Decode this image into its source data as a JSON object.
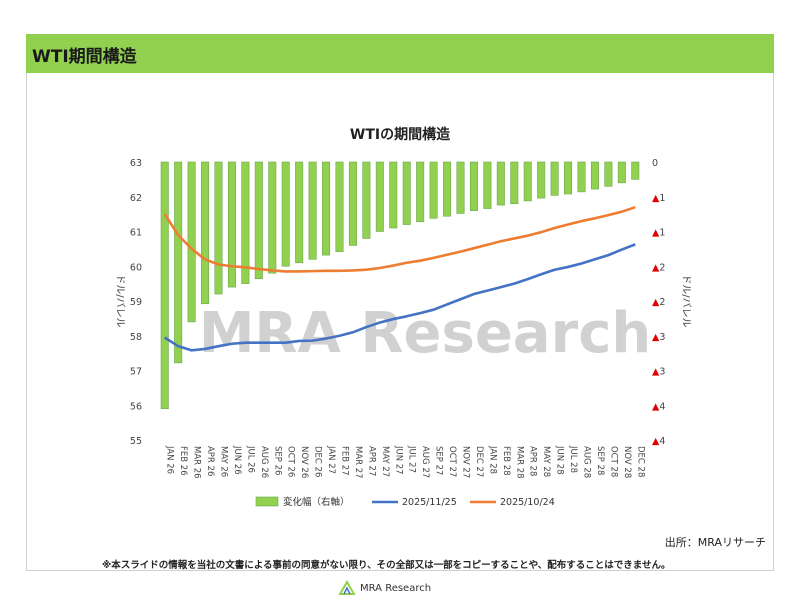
{
  "header": {
    "title": "WTI期間構造"
  },
  "watermark": "MRA Research",
  "source": "出所：MRAリサーチ",
  "footnote": "※本スライドの情報を当社の文書による事前の同意がない限り、その全部又は一部をコピーすることや、配布することはできません。",
  "logo": {
    "text": "MRA Research"
  },
  "colors": {
    "bar": "#92d050",
    "bar_border": "#6aa84f",
    "line_1125": "#4472c4",
    "line_1024": "#ed7d31",
    "neg_marker": "#e00000",
    "header": "#92d050"
  },
  "chart_data": {
    "type": "bar+line",
    "title": "WTIの期間構造",
    "ylabel": "ドル/バレル",
    "y2label": "ドル/バレル",
    "ylim": [
      55,
      63
    ],
    "y2lim": [
      -4,
      0
    ],
    "yticks": [
      "63",
      "62",
      "61",
      "60",
      "59",
      "58",
      "57",
      "56",
      "55"
    ],
    "y2ticks": [
      "0",
      "▲1",
      "▲1",
      "▲2",
      "▲2",
      "▲3",
      "▲3",
      "▲4",
      "▲4"
    ],
    "grid": false,
    "legend_position": "bottom",
    "categories": [
      "JAN 26",
      "FEB 26",
      "MAR 26",
      "APR 26",
      "MAY 26",
      "JUN 26",
      "JUL 26",
      "AUG 26",
      "SEP 26",
      "OCT 26",
      "NOV 26",
      "DEC 26",
      "JAN 27",
      "FEB 27",
      "MAR 27",
      "APR 27",
      "MAY 27",
      "JUN 27",
      "JUL 27",
      "AUG 27",
      "SEP 27",
      "OCT 27",
      "NOV 27",
      "DEC 27",
      "JAN 28",
      "FEB 28",
      "MAR 28",
      "APR 28",
      "MAY 28",
      "JUN 28",
      "JUL 28",
      "AUG 28",
      "SEP 28",
      "OCT 28",
      "NOV 28",
      "DEC 28"
    ],
    "series": [
      {
        "name": "変化幅（右軸）",
        "type": "bar",
        "axis": "right",
        "values": [
          -3.55,
          -2.89,
          -2.3,
          -2.04,
          -1.9,
          -1.8,
          -1.75,
          -1.68,
          -1.6,
          -1.5,
          -1.45,
          -1.4,
          -1.34,
          -1.29,
          -1.2,
          -1.1,
          -1.0,
          -0.95,
          -0.9,
          -0.86,
          -0.81,
          -0.78,
          -0.74,
          -0.7,
          -0.67,
          -0.62,
          -0.6,
          -0.56,
          -0.52,
          -0.48,
          -0.46,
          -0.43,
          -0.39,
          -0.35,
          -0.3,
          -0.25
        ]
      },
      {
        "name": "2025/11/25",
        "type": "line",
        "axis": "left",
        "values": [
          57.95,
          57.7,
          57.58,
          57.62,
          57.7,
          57.77,
          57.8,
          57.8,
          57.8,
          57.8,
          57.85,
          57.86,
          57.92,
          58.0,
          58.1,
          58.25,
          58.38,
          58.48,
          58.56,
          58.65,
          58.75,
          58.9,
          59.05,
          59.2,
          59.3,
          59.4,
          59.5,
          59.63,
          59.77,
          59.9,
          59.98,
          60.08,
          60.2,
          60.32,
          60.48,
          60.63
        ]
      },
      {
        "name": "2025/10/24",
        "type": "line",
        "axis": "left",
        "values": [
          61.5,
          60.9,
          60.5,
          60.2,
          60.05,
          60.0,
          59.97,
          59.92,
          59.88,
          59.85,
          59.85,
          59.86,
          59.87,
          59.87,
          59.88,
          59.9,
          59.95,
          60.02,
          60.1,
          60.16,
          60.24,
          60.33,
          60.42,
          60.52,
          60.62,
          60.72,
          60.8,
          60.88,
          60.98,
          61.1,
          61.2,
          61.3,
          61.38,
          61.47,
          61.57,
          61.7
        ]
      }
    ]
  }
}
